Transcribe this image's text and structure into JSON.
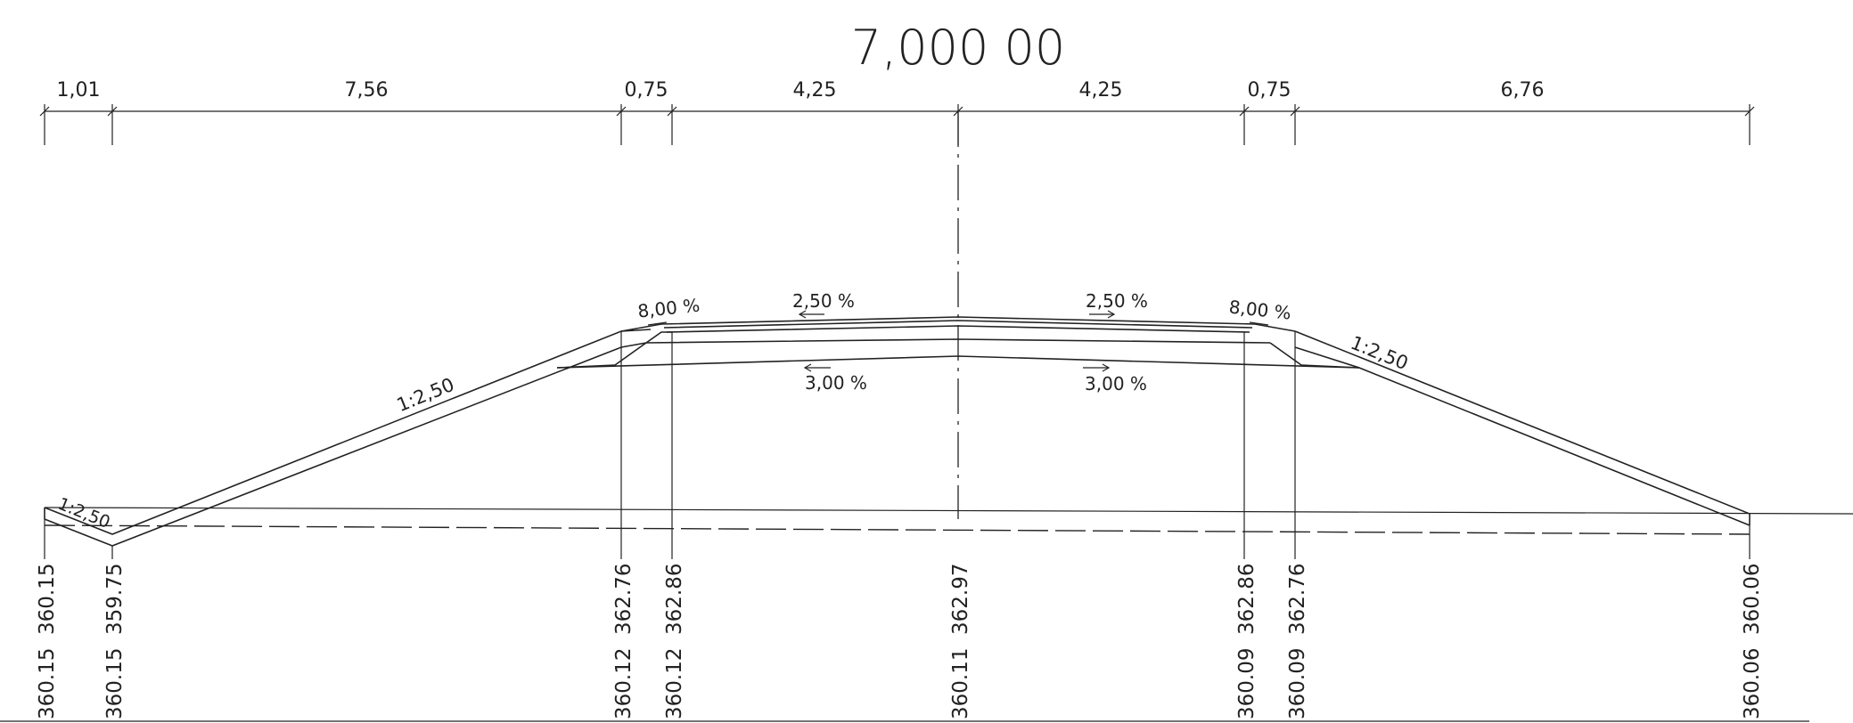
{
  "station": "7,000  00",
  "widths": [
    "1,01",
    "7,56",
    "0,75",
    "4,25",
    "4,25",
    "0,75",
    "6,76"
  ],
  "slopes": {
    "left_embankment": "1:2,50",
    "right_embankment": "1:2,50",
    "left_ditch": "1:2,50"
  },
  "crossfall": {
    "shoulder_left": "8,00  %",
    "lane_left": "2,50  %",
    "lane_right": "2,50  %",
    "shoulder_right": "8,00  %",
    "subgrade_left": "3,00  %",
    "subgrade_right": "3,00  %"
  },
  "points": [
    {
      "id": "p1",
      "ground": "360.15",
      "design": "360.15"
    },
    {
      "id": "p2",
      "ground": "360.15",
      "design": "359.75"
    },
    {
      "id": "p3",
      "ground": "360.12",
      "design": "362.76"
    },
    {
      "id": "p4",
      "ground": "360.12",
      "design": "362.86"
    },
    {
      "id": "p5",
      "ground": "360.11",
      "design": "362.97"
    },
    {
      "id": "p6",
      "ground": "360.09",
      "design": "362.86"
    },
    {
      "id": "p7",
      "ground": "360.09",
      "design": "362.76"
    },
    {
      "id": "p8",
      "ground": "360.06",
      "design": "360.06"
    }
  ]
}
